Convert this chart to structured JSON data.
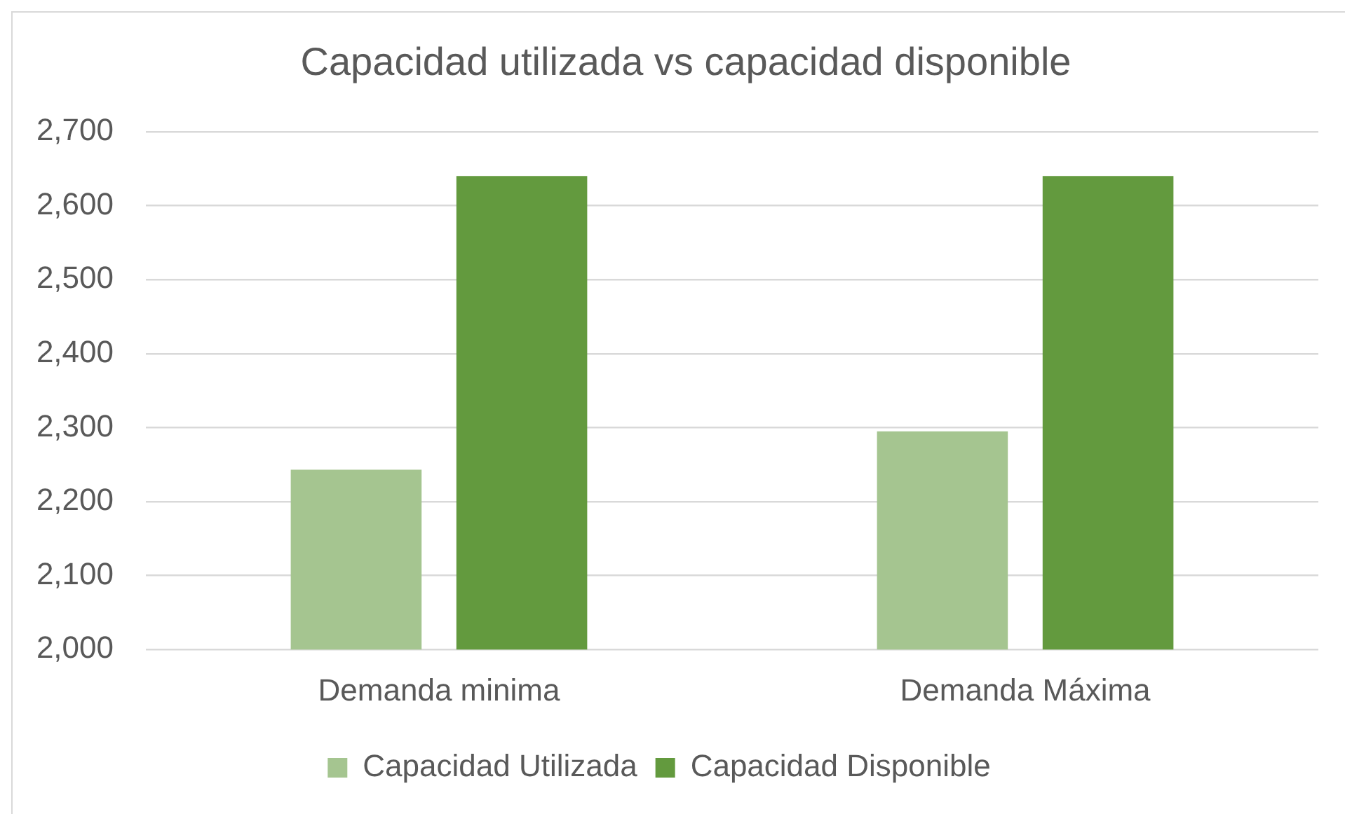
{
  "chart_data": {
    "type": "bar",
    "title": "Capacidad utilizada vs capacidad disponible",
    "categories": [
      "Demanda minima",
      "Demanda Máxima"
    ],
    "series": [
      {
        "name": "Capacidad Utilizada",
        "color": "#a5c590",
        "values": [
          2243,
          2295
        ]
      },
      {
        "name": "Capacidad Disponible",
        "color": "#639a3e",
        "values": [
          2640,
          2640
        ]
      }
    ],
    "ylim": [
      2000,
      2700
    ],
    "yticks": [
      {
        "value": 2000,
        "label": "2,000"
      },
      {
        "value": 2100,
        "label": "2,100"
      },
      {
        "value": 2200,
        "label": "2,200"
      },
      {
        "value": 2300,
        "label": "2,300"
      },
      {
        "value": 2400,
        "label": "2,400"
      },
      {
        "value": 2500,
        "label": "2,500"
      },
      {
        "value": 2600,
        "label": "2,600"
      },
      {
        "value": 2700,
        "label": "2,700"
      }
    ],
    "grid": "y",
    "legend": "bottom"
  }
}
